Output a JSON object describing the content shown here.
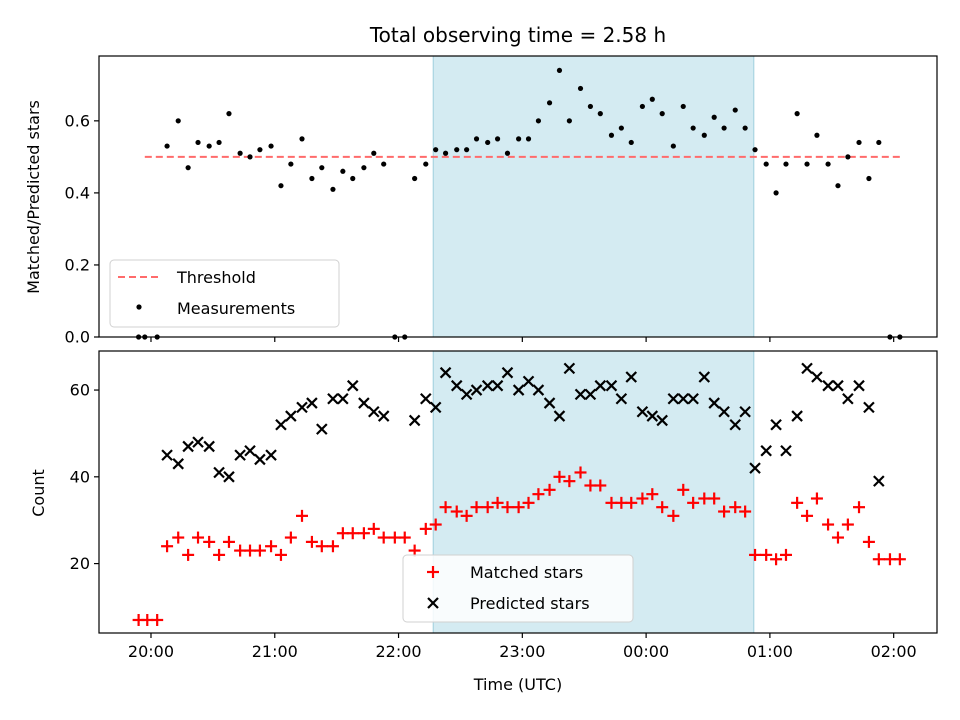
{
  "title": "Total observing time = 2.58 h",
  "colors": {
    "threshold": "#ff6b6b",
    "measurement": "#000000",
    "matched": "#ff0000",
    "predicted": "#000000",
    "highlight": "#add8e6"
  },
  "chart_data": [
    {
      "type": "scatter",
      "ylabel": "Matched/Predicted stars",
      "ylim": [
        0,
        0.78
      ],
      "yticks": [
        0.0,
        0.2,
        0.4,
        0.6
      ],
      "ytick_labels": [
        "0.0",
        "0.2",
        "0.4",
        "0.6"
      ],
      "highlight_span": [
        22.28,
        24.87
      ],
      "threshold": {
        "name": "Threshold",
        "x_range": [
          19.95,
          26.05
        ],
        "y": 0.5
      },
      "legend": {
        "position": "lower-left",
        "entries": [
          "Threshold",
          "Measurements"
        ]
      },
      "series": [
        {
          "name": "Measurements",
          "x": [
            19.9,
            19.95,
            20.05,
            20.13,
            20.22,
            20.3,
            20.38,
            20.47,
            20.55,
            20.63,
            20.72,
            20.8,
            20.88,
            20.97,
            21.05,
            21.13,
            21.22,
            21.3,
            21.38,
            21.47,
            21.55,
            21.63,
            21.72,
            21.8,
            21.88,
            21.97,
            22.05,
            22.13,
            22.22,
            22.3,
            22.38,
            22.47,
            22.55,
            22.63,
            22.72,
            22.8,
            22.88,
            22.97,
            23.05,
            23.13,
            23.22,
            23.3,
            23.38,
            23.47,
            23.55,
            23.63,
            23.72,
            23.8,
            23.88,
            23.97,
            24.05,
            24.13,
            24.22,
            24.3,
            24.38,
            24.47,
            24.55,
            24.63,
            24.72,
            24.8,
            24.88,
            24.97,
            25.05,
            25.13,
            25.22,
            25.3,
            25.38,
            25.47,
            25.55,
            25.63,
            25.72,
            25.8,
            25.88,
            25.97,
            26.05
          ],
          "y": [
            0.0,
            0.0,
            0.0,
            0.53,
            0.6,
            0.47,
            0.54,
            0.53,
            0.54,
            0.62,
            0.51,
            0.5,
            0.52,
            0.53,
            0.42,
            0.48,
            0.55,
            0.44,
            0.47,
            0.41,
            0.46,
            0.44,
            0.47,
            0.51,
            0.48,
            0.0,
            0.0,
            0.44,
            0.48,
            0.52,
            0.51,
            0.52,
            0.52,
            0.55,
            0.54,
            0.55,
            0.51,
            0.55,
            0.55,
            0.6,
            0.65,
            0.74,
            0.6,
            0.69,
            0.64,
            0.62,
            0.56,
            0.58,
            0.54,
            0.64,
            0.66,
            0.62,
            0.53,
            0.64,
            0.58,
            0.56,
            0.61,
            0.58,
            0.63,
            0.58,
            0.52,
            0.48,
            0.4,
            0.48,
            0.62,
            0.48,
            0.56,
            0.48,
            0.42,
            0.5,
            0.54,
            0.44,
            0.54,
            0.0,
            0.0
          ]
        }
      ]
    },
    {
      "type": "scatter",
      "xlabel": "Time (UTC)",
      "ylabel": "Count",
      "ylim": [
        4,
        69
      ],
      "yticks": [
        20,
        40,
        60
      ],
      "ytick_labels": [
        "20",
        "40",
        "60"
      ],
      "xlim": [
        19.58,
        26.35
      ],
      "xticks": [
        20,
        21,
        22,
        23,
        24,
        25,
        26
      ],
      "xtick_labels": [
        "20:00",
        "21:00",
        "22:00",
        "23:00",
        "00:00",
        "01:00",
        "02:00"
      ],
      "highlight_span": [
        22.28,
        24.87
      ],
      "legend": {
        "position": "lower-center",
        "entries": [
          "Matched stars",
          "Predicted stars"
        ]
      },
      "series": [
        {
          "name": "Matched stars",
          "marker": "plus",
          "x": [
            19.9,
            19.97,
            20.05,
            20.13,
            20.22,
            20.3,
            20.38,
            20.47,
            20.55,
            20.63,
            20.72,
            20.8,
            20.88,
            20.97,
            21.05,
            21.13,
            21.22,
            21.3,
            21.38,
            21.47,
            21.55,
            21.63,
            21.72,
            21.8,
            21.88,
            21.97,
            22.05,
            22.13,
            22.22,
            22.3,
            22.38,
            22.47,
            22.55,
            22.63,
            22.72,
            22.8,
            22.88,
            22.97,
            23.05,
            23.13,
            23.22,
            23.3,
            23.38,
            23.47,
            23.55,
            23.63,
            23.72,
            23.8,
            23.88,
            23.97,
            24.05,
            24.13,
            24.22,
            24.3,
            24.38,
            24.47,
            24.55,
            24.63,
            24.72,
            24.8,
            24.88,
            24.97,
            25.05,
            25.13,
            25.22,
            25.3,
            25.38,
            25.47,
            25.55,
            25.63,
            25.72,
            25.8,
            25.88,
            25.97,
            26.05
          ],
          "y": [
            7,
            7,
            7,
            24,
            26,
            22,
            26,
            25,
            22,
            25,
            23,
            23,
            23,
            24,
            22,
            26,
            31,
            25,
            24,
            24,
            27,
            27,
            27,
            28,
            26,
            26,
            26,
            23,
            28,
            29,
            33,
            32,
            31,
            33,
            33,
            34,
            33,
            33,
            34,
            36,
            37,
            40,
            39,
            41,
            38,
            38,
            34,
            34,
            34,
            35,
            36,
            33,
            31,
            37,
            34,
            35,
            35,
            32,
            33,
            32,
            22,
            22,
            21,
            22,
            34,
            31,
            35,
            29,
            26,
            29,
            33,
            25,
            21,
            21,
            21
          ]
        },
        {
          "name": "Predicted stars",
          "marker": "x",
          "x": [
            20.13,
            20.22,
            20.3,
            20.38,
            20.47,
            20.55,
            20.63,
            20.72,
            20.8,
            20.88,
            20.97,
            21.05,
            21.13,
            21.22,
            21.3,
            21.38,
            21.47,
            21.55,
            21.63,
            21.72,
            21.8,
            21.88,
            22.13,
            22.22,
            22.3,
            22.38,
            22.47,
            22.55,
            22.63,
            22.72,
            22.8,
            22.88,
            22.97,
            23.05,
            23.13,
            23.22,
            23.3,
            23.38,
            23.47,
            23.55,
            23.63,
            23.72,
            23.8,
            23.88,
            23.97,
            24.05,
            24.13,
            24.22,
            24.3,
            24.38,
            24.47,
            24.55,
            24.63,
            24.72,
            24.8,
            24.88,
            24.97,
            25.05,
            25.13,
            25.22,
            25.3,
            25.38,
            25.47,
            25.55,
            25.63,
            25.72,
            25.8,
            25.88
          ],
          "y": [
            45,
            43,
            47,
            48,
            47,
            41,
            40,
            45,
            46,
            44,
            45,
            52,
            54,
            56,
            57,
            51,
            58,
            58,
            61,
            57,
            55,
            54,
            53,
            58,
            56,
            64,
            61,
            59,
            60,
            61,
            61,
            64,
            60,
            62,
            60,
            57,
            54,
            65,
            59,
            59,
            61,
            61,
            58,
            63,
            55,
            54,
            53,
            58,
            58,
            58,
            63,
            57,
            55,
            52,
            55,
            42,
            46,
            52,
            46,
            54,
            65,
            63,
            61,
            61,
            58,
            61,
            56,
            39
          ]
        }
      ]
    }
  ]
}
